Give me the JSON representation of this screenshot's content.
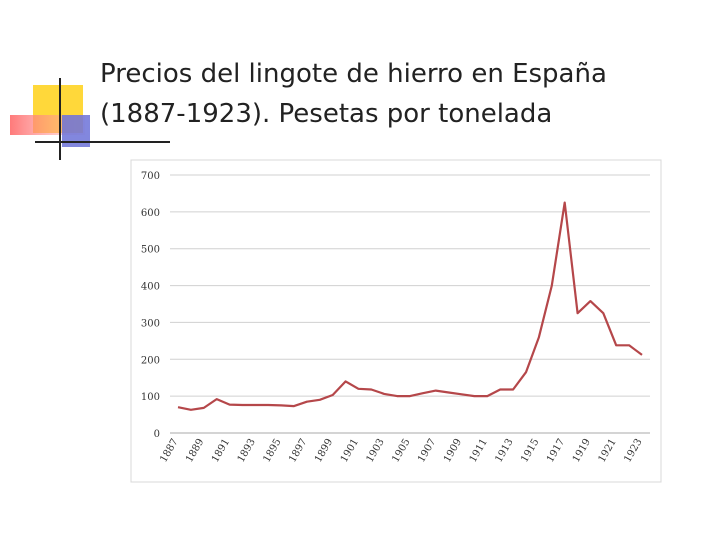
{
  "chart_data": {
    "type": "line",
    "title_lines": [
      "Precios del lingote de hierro en España",
      "(1887-1923). Pesetas por tonelada"
    ],
    "categories": [
      "1887",
      null,
      "1889",
      null,
      "1891",
      null,
      "1893",
      null,
      "1895",
      null,
      "1897",
      null,
      "1899",
      null,
      "1901",
      null,
      "1903",
      null,
      "1905",
      null,
      "1907",
      null,
      "1909",
      null,
      "1911",
      null,
      "1913",
      null,
      "1915",
      null,
      "1917",
      null,
      "1919",
      null,
      "1921",
      null,
      "1923"
    ],
    "series": [
      {
        "name": null,
        "color": "#b5474a",
        "values": [
          70,
          63,
          68,
          92,
          77,
          76,
          76,
          76,
          75,
          73,
          85,
          90,
          103,
          140,
          120,
          118,
          106,
          100,
          100,
          108,
          115,
          110,
          105,
          100,
          100,
          118,
          118,
          165,
          260,
          400,
          625,
          325,
          358,
          325,
          238,
          238,
          212
        ]
      }
    ],
    "ylim": [
      0,
      700
    ],
    "yticks": [
      0,
      100,
      200,
      300,
      400,
      500,
      600,
      700
    ],
    "grid": true
  }
}
